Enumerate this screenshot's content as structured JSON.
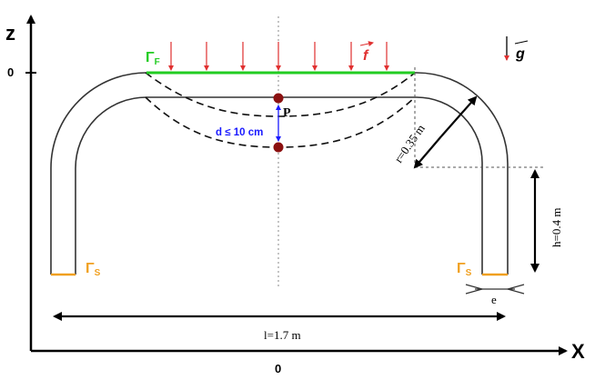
{
  "axes": {
    "z_label": "z",
    "x_label": "X",
    "z_zero": "0",
    "x_zero": "0"
  },
  "labels": {
    "gamma_f": "Γ",
    "gamma_f_sub": "F",
    "gamma_s_left": "Γ",
    "gamma_s_left_sub": "S",
    "gamma_s_right": "Γ",
    "gamma_s_right_sub": "S",
    "force": "f",
    "gravity": "g",
    "point": "P",
    "displacement": "d ≤ 10 cm",
    "radius": "r=0.35 m",
    "height": "h=0.4 m",
    "length": "l=1.7 m",
    "thickness": "e"
  },
  "colors": {
    "boundary_top": "#22cc22",
    "boundary_bottom": "#f0a020",
    "force_arrows": "#e03030",
    "point_marker": "#8b1010",
    "displacement": "#1a1aff",
    "structure": "#333333"
  }
}
